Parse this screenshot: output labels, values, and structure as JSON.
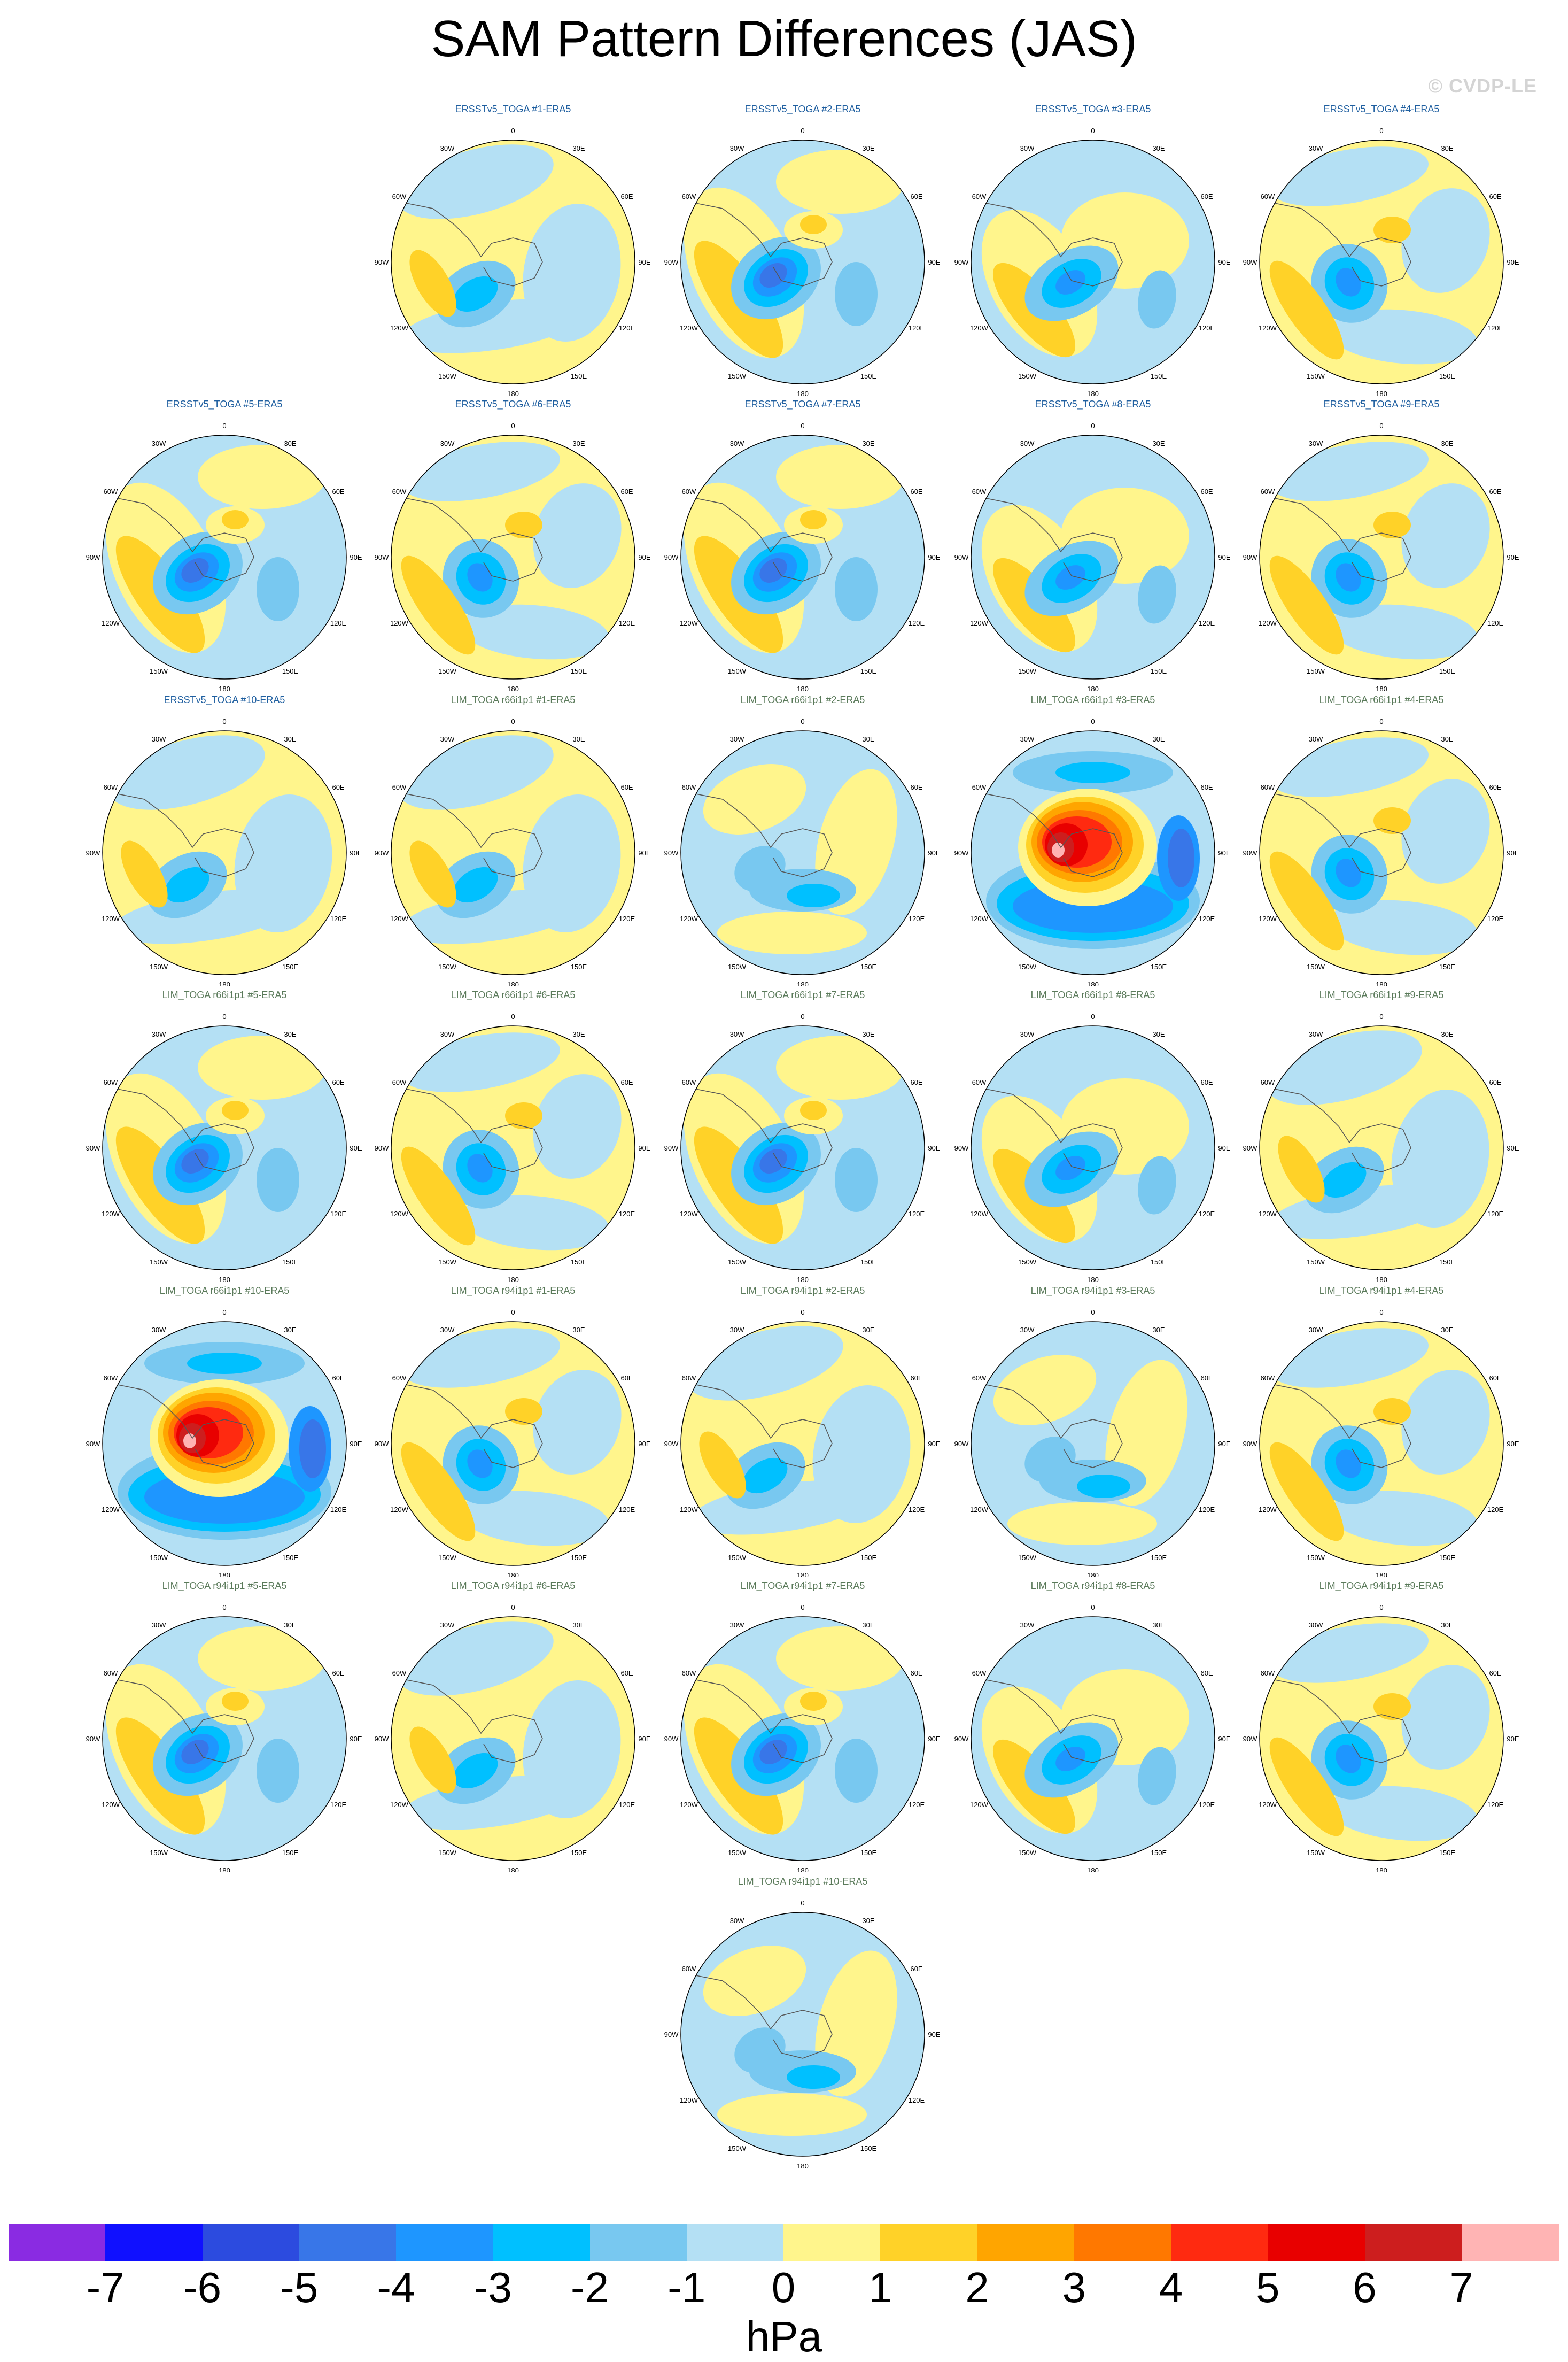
{
  "figure": {
    "title": "SAM Pattern Differences (JAS)",
    "watermark": "© CVDP-LE",
    "units": "hPa"
  },
  "lon_labels": {
    "top": "0",
    "upper_left": "30W",
    "upper_right": "30E",
    "mid_upper_left": "60W",
    "mid_upper_right": "60E",
    "left": "90W",
    "right": "90E",
    "mid_lower_left": "120W",
    "mid_lower_right": "120E",
    "lower_left": "150W",
    "lower_right": "150E",
    "bottom": "180"
  },
  "colorbar": {
    "labels": [
      "-7",
      "-6",
      "-5",
      "-4",
      "-3",
      "-2",
      "-1",
      "0",
      "1",
      "2",
      "3",
      "4",
      "5",
      "6",
      "7"
    ],
    "colors": [
      "#8a2be2",
      "#1010ff",
      "#2c4bdf",
      "#3876e8",
      "#1e96ff",
      "#00c0ff",
      "#78c8f0",
      "#b4e0f4",
      "#fff58c",
      "#ffd228",
      "#ffa500",
      "#ff7800",
      "#ff2a10",
      "#e80000",
      "#cd1e1e",
      "#ffb4b4"
    ]
  },
  "panels": [
    {
      "title": "ERSSTv5_TOGA #1-ERA5",
      "title_color": "#1f5fa0",
      "row": 0,
      "col": 1,
      "variant": 0
    },
    {
      "title": "ERSSTv5_TOGA #2-ERA5",
      "title_color": "#1f5fa0",
      "row": 0,
      "col": 2,
      "variant": 1
    },
    {
      "title": "ERSSTv5_TOGA #3-ERA5",
      "title_color": "#1f5fa0",
      "row": 0,
      "col": 3,
      "variant": 2
    },
    {
      "title": "ERSSTv5_TOGA #4-ERA5",
      "title_color": "#1f5fa0",
      "row": 0,
      "col": 4,
      "variant": 3
    },
    {
      "title": "ERSSTv5_TOGA #5-ERA5",
      "title_color": "#1f5fa0",
      "row": 1,
      "col": 0,
      "variant": 1
    },
    {
      "title": "ERSSTv5_TOGA #6-ERA5",
      "title_color": "#1f5fa0",
      "row": 1,
      "col": 1,
      "variant": 3
    },
    {
      "title": "ERSSTv5_TOGA #7-ERA5",
      "title_color": "#1f5fa0",
      "row": 1,
      "col": 2,
      "variant": 1
    },
    {
      "title": "ERSSTv5_TOGA #8-ERA5",
      "title_color": "#1f5fa0",
      "row": 1,
      "col": 3,
      "variant": 2
    },
    {
      "title": "ERSSTv5_TOGA #9-ERA5",
      "title_color": "#1f5fa0",
      "row": 1,
      "col": 4,
      "variant": 3
    },
    {
      "title": "ERSSTv5_TOGA #10-ERA5",
      "title_color": "#1f5fa0",
      "row": 2,
      "col": 0,
      "variant": 0
    },
    {
      "title": "LIM_TOGA r66i1p1 #1-ERA5",
      "title_color": "#5a7a5a",
      "row": 2,
      "col": 1,
      "variant": 0
    },
    {
      "title": "LIM_TOGA r66i1p1 #2-ERA5",
      "title_color": "#5a7a5a",
      "row": 2,
      "col": 2,
      "variant": 4
    },
    {
      "title": "LIM_TOGA r66i1p1 #3-ERA5",
      "title_color": "#5a7a5a",
      "row": 2,
      "col": 3,
      "variant": 5
    },
    {
      "title": "LIM_TOGA r66i1p1 #4-ERA5",
      "title_color": "#5a7a5a",
      "row": 2,
      "col": 4,
      "variant": 3
    },
    {
      "title": "LIM_TOGA r66i1p1 #5-ERA5",
      "title_color": "#5a7a5a",
      "row": 3,
      "col": 0,
      "variant": 1
    },
    {
      "title": "LIM_TOGA r66i1p1 #6-ERA5",
      "title_color": "#5a7a5a",
      "row": 3,
      "col": 1,
      "variant": 3
    },
    {
      "title": "LIM_TOGA r66i1p1 #7-ERA5",
      "title_color": "#5a7a5a",
      "row": 3,
      "col": 2,
      "variant": 1
    },
    {
      "title": "LIM_TOGA r66i1p1 #8-ERA5",
      "title_color": "#5a7a5a",
      "row": 3,
      "col": 3,
      "variant": 2
    },
    {
      "title": "LIM_TOGA r66i1p1 #9-ERA5",
      "title_color": "#5a7a5a",
      "row": 3,
      "col": 4,
      "variant": 0
    },
    {
      "title": "LIM_TOGA r66i1p1 #10-ERA5",
      "title_color": "#5a7a5a",
      "row": 4,
      "col": 0,
      "variant": 5
    },
    {
      "title": "LIM_TOGA r94i1p1 #1-ERA5",
      "title_color": "#5a7a5a",
      "row": 4,
      "col": 1,
      "variant": 3
    },
    {
      "title": "LIM_TOGA r94i1p1 #2-ERA5",
      "title_color": "#5a7a5a",
      "row": 4,
      "col": 2,
      "variant": 0
    },
    {
      "title": "LIM_TOGA r94i1p1 #3-ERA5",
      "title_color": "#5a7a5a",
      "row": 4,
      "col": 3,
      "variant": 4
    },
    {
      "title": "LIM_TOGA r94i1p1 #4-ERA5",
      "title_color": "#5a7a5a",
      "row": 4,
      "col": 4,
      "variant": 3
    },
    {
      "title": "LIM_TOGA r94i1p1 #5-ERA5",
      "title_color": "#5a7a5a",
      "row": 5,
      "col": 0,
      "variant": 1
    },
    {
      "title": "LIM_TOGA r94i1p1 #6-ERA5",
      "title_color": "#5a7a5a",
      "row": 5,
      "col": 1,
      "variant": 0
    },
    {
      "title": "LIM_TOGA r94i1p1 #7-ERA5",
      "title_color": "#5a7a5a",
      "row": 5,
      "col": 2,
      "variant": 1
    },
    {
      "title": "LIM_TOGA r94i1p1 #8-ERA5",
      "title_color": "#5a7a5a",
      "row": 5,
      "col": 3,
      "variant": 2
    },
    {
      "title": "LIM_TOGA r94i1p1 #9-ERA5",
      "title_color": "#5a7a5a",
      "row": 5,
      "col": 4,
      "variant": 3
    },
    {
      "title": "LIM_TOGA r94i1p1 #10-ERA5",
      "title_color": "#5a7a5a",
      "row": 6,
      "col": 2,
      "variant": 4
    }
  ]
}
